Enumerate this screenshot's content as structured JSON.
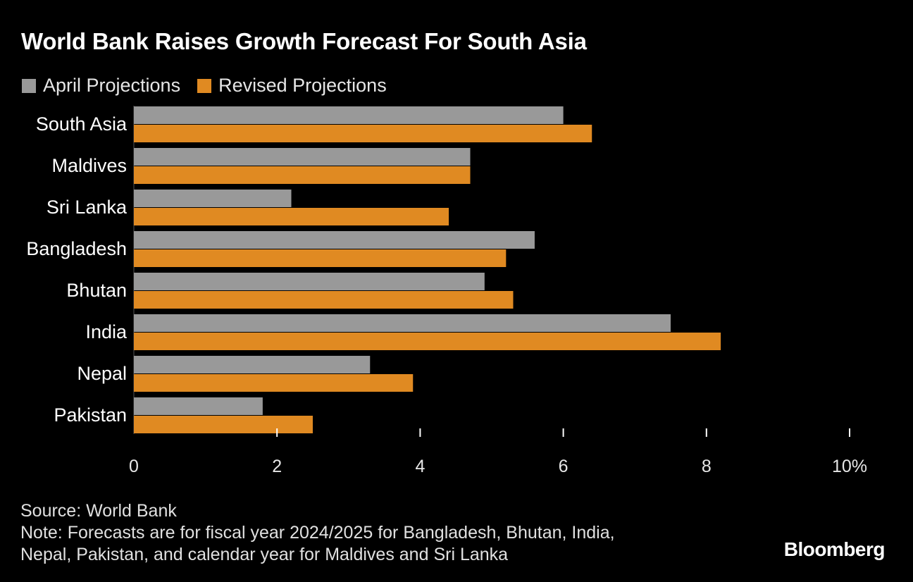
{
  "title": "World Bank Raises Growth Forecast For South Asia",
  "colors": {
    "background": "#000000",
    "april": "#999999",
    "revised": "#e08a22",
    "text": "#ffffff"
  },
  "chart_data": {
    "type": "bar",
    "orientation": "horizontal",
    "categories": [
      "South Asia",
      "Maldives",
      "Sri Lanka",
      "Bangladesh",
      "Bhutan",
      "India",
      "Nepal",
      "Pakistan"
    ],
    "series": [
      {
        "name": "April Projections",
        "values": [
          6.0,
          4.7,
          2.2,
          5.6,
          4.9,
          7.5,
          3.3,
          1.8
        ]
      },
      {
        "name": "Revised Projections",
        "values": [
          6.4,
          4.7,
          4.4,
          5.2,
          5.3,
          8.2,
          3.9,
          2.5
        ]
      }
    ],
    "xlim": [
      0,
      10
    ],
    "x_ticks": [
      0,
      2,
      4,
      6,
      8,
      10
    ],
    "x_tick_labels": [
      "0",
      "2",
      "4",
      "6",
      "8",
      "10%"
    ],
    "legend_position": "top-left",
    "grid": false
  },
  "footer": {
    "source": "Source: World Bank",
    "note_line1": "Note: Forecasts are for fiscal year 2024/2025 for Bangladesh, Bhutan, India,",
    "note_line2": "Nepal, Pakistan, and calendar year for Maldives and Sri Lanka"
  },
  "brand": "Bloomberg"
}
